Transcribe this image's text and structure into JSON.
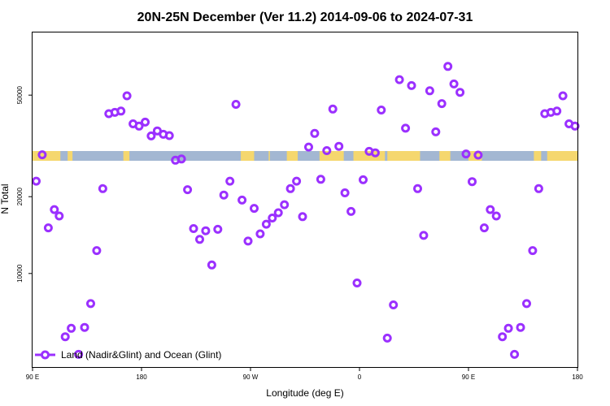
{
  "chart_data": {
    "type": "scatter",
    "title": "20N-25N December (Ver 11.2)   2014-09-06 to 2024-07-31",
    "xlabel": "Longitude (deg E)",
    "ylabel": "N Total",
    "x_ticks": [
      {
        "value": 90,
        "label": "90 E"
      },
      {
        "value": 180,
        "label": "180"
      },
      {
        "value": 270,
        "label": "90 W"
      },
      {
        "value": 360,
        "label": "0"
      },
      {
        "value": 450,
        "label": "90 E"
      },
      {
        "value": 540,
        "label": "180"
      }
    ],
    "y_ticks": [
      {
        "value": 10000,
        "label": "10000"
      },
      {
        "value": 20000,
        "label": "20000"
      },
      {
        "value": 50000,
        "label": "50000"
      }
    ],
    "y_scale": "log",
    "xlim": [
      90,
      540
    ],
    "ylim": [
      4300,
      88000
    ],
    "grid": false,
    "legend_position": "bottom-left",
    "series": [
      {
        "name": "Land (Nadir&Glint) and Ocean (Glint)",
        "color": "#9b30ff",
        "marker": "open-circle",
        "points": [
          [
            93,
            23000
          ],
          [
            98,
            29200
          ],
          [
            103,
            15100
          ],
          [
            108,
            17800
          ],
          [
            112,
            16800
          ],
          [
            117,
            5650
          ],
          [
            122,
            6100
          ],
          [
            128,
            4820
          ],
          [
            133,
            6150
          ],
          [
            138,
            7620
          ],
          [
            143,
            12300
          ],
          [
            148,
            21500
          ],
          [
            153,
            42300
          ],
          [
            158,
            42800
          ],
          [
            163,
            43300
          ],
          [
            168,
            49700
          ],
          [
            173,
            38600
          ],
          [
            178,
            37800
          ],
          [
            183,
            39200
          ],
          [
            188,
            34600
          ],
          [
            193,
            36200
          ],
          [
            198,
            35100
          ],
          [
            203,
            34700
          ],
          [
            208,
            27800
          ],
          [
            213,
            28100
          ],
          [
            218,
            21300
          ],
          [
            223,
            15000
          ],
          [
            228,
            13600
          ],
          [
            233,
            14700
          ],
          [
            238,
            10800
          ],
          [
            243,
            14900
          ],
          [
            248,
            20300
          ],
          [
            253,
            23000
          ],
          [
            258,
            46000
          ],
          [
            263,
            19400
          ],
          [
            268,
            13400
          ],
          [
            273,
            18000
          ],
          [
            278,
            14300
          ],
          [
            283,
            15600
          ],
          [
            288,
            16500
          ],
          [
            293,
            17300
          ],
          [
            298,
            18600
          ],
          [
            303,
            21500
          ],
          [
            308,
            23000
          ],
          [
            313,
            16700
          ],
          [
            318,
            31300
          ],
          [
            323,
            35400
          ],
          [
            328,
            23400
          ],
          [
            333,
            30300
          ],
          [
            338,
            44100
          ],
          [
            343,
            31500
          ],
          [
            348,
            20700
          ],
          [
            353,
            17500
          ],
          [
            358,
            9180
          ],
          [
            363,
            23300
          ],
          [
            368,
            30100
          ],
          [
            373,
            29700
          ],
          [
            378,
            43700
          ],
          [
            383,
            5580
          ],
          [
            388,
            7530
          ],
          [
            393,
            57500
          ],
          [
            398,
            37100
          ],
          [
            403,
            54500
          ],
          [
            408,
            21500
          ],
          [
            413,
            14100
          ],
          [
            418,
            52000
          ],
          [
            423,
            35900
          ],
          [
            428,
            46300
          ],
          [
            433,
            64800
          ],
          [
            438,
            55300
          ],
          [
            443,
            51300
          ],
          [
            448,
            29400
          ],
          [
            453,
            22900
          ],
          [
            458,
            29100
          ],
          [
            463,
            15100
          ],
          [
            468,
            17800
          ],
          [
            473,
            16800
          ],
          [
            478,
            5650
          ],
          [
            483,
            6100
          ],
          [
            488,
            4820
          ],
          [
            493,
            6150
          ],
          [
            498,
            7620
          ],
          [
            503,
            12300
          ],
          [
            508,
            21500
          ],
          [
            513,
            42300
          ],
          [
            518,
            42800
          ],
          [
            523,
            43300
          ],
          [
            528,
            49700
          ],
          [
            533,
            38600
          ],
          [
            538,
            37800
          ]
        ]
      }
    ]
  }
}
